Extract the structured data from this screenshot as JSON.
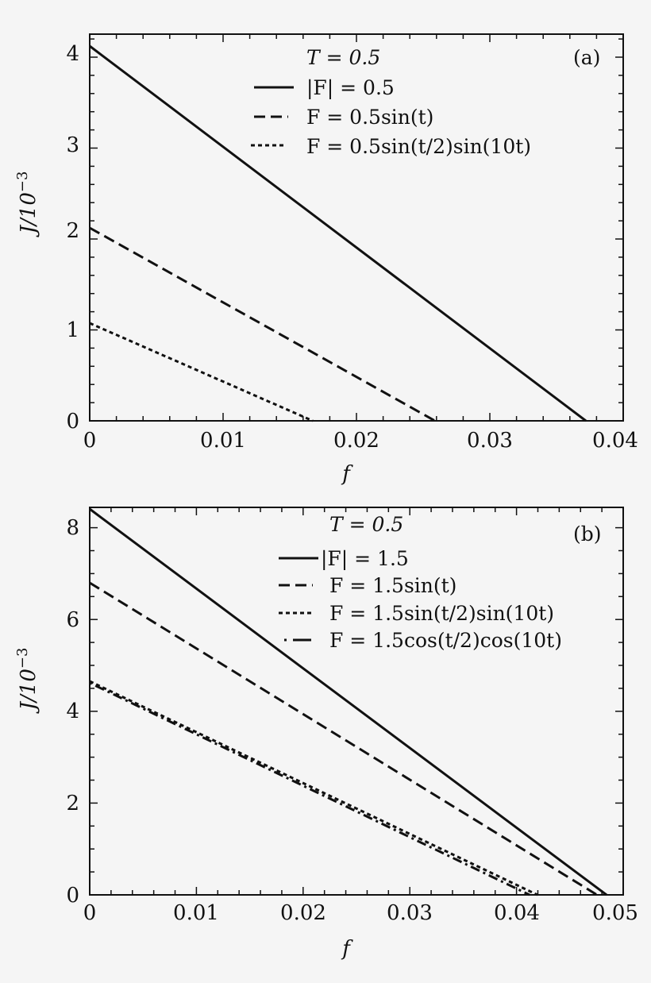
{
  "chart_data": [
    {
      "type": "line",
      "panel": "(a)",
      "title": "",
      "xlabel": "f",
      "ylabel": "J/10^-3",
      "xlim": [
        0,
        0.04
      ],
      "ylim": [
        0,
        4.2
      ],
      "xticks": [
        "0",
        "0.01",
        "0.02",
        "0.03",
        "0.04"
      ],
      "yticks": [
        "0",
        "1",
        "2",
        "3",
        "4"
      ],
      "legend_header": "T = 0.5",
      "series": [
        {
          "name": "|F| = 0.5",
          "style": "solid",
          "x": [
            0,
            0.0372
          ],
          "values": [
            4.12,
            0
          ]
        },
        {
          "name": "F = 0.5sin(t)",
          "style": "dashed",
          "x": [
            0,
            0.0259
          ],
          "values": [
            2.12,
            0
          ]
        },
        {
          "name": "F = 0.5sin(t/2)sin(10t)",
          "style": "dotted",
          "x": [
            0,
            0.0167
          ],
          "values": [
            1.07,
            0
          ]
        }
      ]
    },
    {
      "type": "line",
      "panel": "(b)",
      "title": "",
      "xlabel": "f",
      "ylabel": "J/10^-3",
      "xlim": [
        0,
        0.05
      ],
      "ylim": [
        0,
        8.4
      ],
      "xticks": [
        "0",
        "0.01",
        "0.02",
        "0.03",
        "0.04",
        "0.05"
      ],
      "yticks": [
        "0",
        "2",
        "4",
        "6",
        "8"
      ],
      "legend_header": "T = 0.5",
      "series": [
        {
          "name": "|F| = 1.5",
          "style": "solid",
          "x": [
            0,
            0.0485
          ],
          "values": [
            8.4,
            0
          ]
        },
        {
          "name": "F = 1.5sin(t)",
          "style": "dashed",
          "x": [
            0,
            0.0476
          ],
          "values": [
            6.8,
            0
          ]
        },
        {
          "name": "F = 1.5sin(t/2)sin(10t)",
          "style": "dotted",
          "x": [
            0,
            0.042
          ],
          "values": [
            4.65,
            0
          ]
        },
        {
          "name": "F = 1.5cos(t/2)cos(10t)",
          "style": "dashdot",
          "x": [
            0,
            0.0412
          ],
          "values": [
            4.62,
            0
          ]
        }
      ]
    }
  ],
  "panel_a": {
    "tag": "(a)",
    "legend_header": "T = 0.5",
    "legend": [
      "|F| = 0.5",
      "F = 0.5sin(t)",
      "F = 0.5sin(t/2)sin(10t)"
    ],
    "xticks": [
      "0",
      "0.01",
      "0.02",
      "0.03",
      "0.04"
    ],
    "yticks": [
      "0",
      "1",
      "2",
      "3",
      "4"
    ],
    "xlabel": "f",
    "ylabel": "J/10",
    "ylabel_exp": "−3"
  },
  "panel_b": {
    "tag": "(b)",
    "legend_header": "T = 0.5",
    "legend": [
      "|F| = 1.5",
      "F = 1.5sin(t)",
      "F = 1.5sin(t/2)sin(10t)",
      "F = 1.5cos(t/2)cos(10t)"
    ],
    "xticks": [
      "0",
      "0.01",
      "0.02",
      "0.03",
      "0.04",
      "0.05"
    ],
    "yticks": [
      "0",
      "2",
      "4",
      "6",
      "8"
    ],
    "xlabel": "f",
    "ylabel": "J/10",
    "ylabel_exp": "−3"
  }
}
